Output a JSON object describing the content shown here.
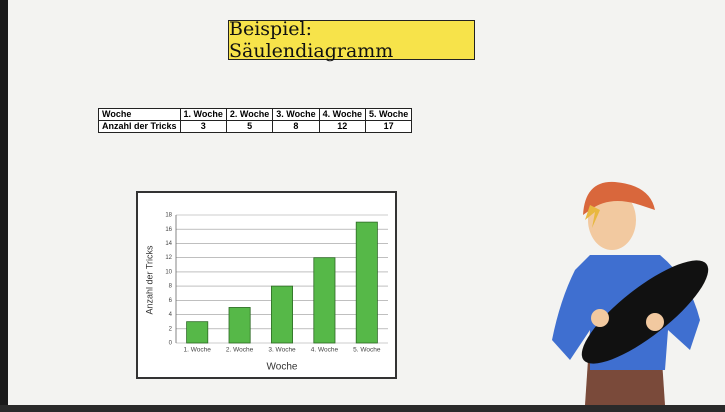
{
  "header": {
    "title": "Beispiel: Säulendiagramm"
  },
  "table": {
    "rows": [
      [
        "Woche",
        "1. Woche",
        "2. Woche",
        "3. Woche",
        "4. Woche",
        "5. Woche"
      ],
      [
        "Anzahl der Tricks",
        3,
        5,
        8,
        12,
        17
      ]
    ]
  },
  "chart_data": {
    "type": "bar",
    "categories": [
      "1. Woche",
      "2. Woche",
      "3. Woche",
      "4. Woche",
      "5. Woche"
    ],
    "values": [
      3,
      5,
      8,
      12,
      17
    ],
    "color": "#56b848",
    "x_label": "Woche",
    "y_label": "Anzahl der Tricks",
    "ylim": [
      0,
      18
    ],
    "yticks": [
      0,
      2,
      4,
      6,
      8,
      10,
      12,
      14,
      16,
      18
    ],
    "grid": true
  }
}
